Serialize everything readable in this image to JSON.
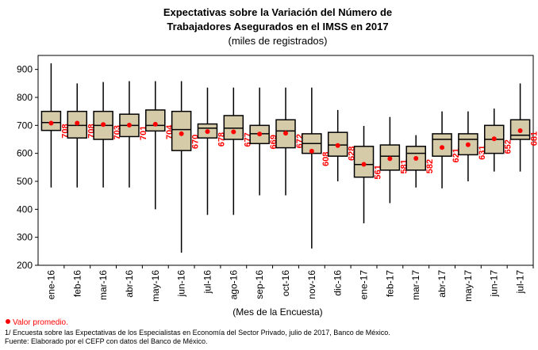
{
  "chart_data": {
    "type": "box",
    "title": [
      "Expectativas sobre la Variación del Número de",
      "Trabajadores  Asegurados  en el IMSS  en 2017"
    ],
    "subtitle": "(miles de registrados)",
    "x_label": "(Mes de la Encuesta)",
    "legend": "Valor promedio.",
    "notes": [
      "1/ Encuesta sobre las Expectativas de los Especialistas en Economía del Sector Privado, julio de 2017, Banco de México.",
      "Fuente: Elaborado por el CEFP con datos del Banco de México."
    ],
    "categories": [
      "ene-16",
      "feb-16",
      "mar-16",
      "abr-16",
      "may-16",
      "jun-16",
      "jul-16",
      "ago-16",
      "sep-16",
      "oct-16",
      "nov-16",
      "dic-16",
      "ene-17",
      "feb-17",
      "mar-17",
      "abr-17",
      "may-17",
      "jun-17",
      "jul-17"
    ],
    "low": [
      478,
      478,
      478,
      478,
      400,
      245,
      380,
      380,
      450,
      450,
      260,
      500,
      350,
      422,
      478,
      475,
      500,
      535,
      535
    ],
    "q1": [
      682,
      655,
      650,
      660,
      680,
      610,
      655,
      650,
      635,
      620,
      600,
      590,
      515,
      540,
      540,
      590,
      595,
      600,
      650
    ],
    "median": [
      710,
      700,
      700,
      700,
      700,
      685,
      690,
      690,
      670,
      680,
      635,
      630,
      560,
      590,
      600,
      650,
      650,
      650,
      665
    ],
    "q3": [
      750,
      750,
      750,
      740,
      755,
      750,
      705,
      735,
      700,
      720,
      670,
      675,
      625,
      630,
      625,
      670,
      670,
      700,
      720
    ],
    "high": [
      922,
      850,
      855,
      858,
      858,
      858,
      835,
      835,
      835,
      835,
      835,
      755,
      698,
      730,
      665,
      750,
      750,
      760,
      850
    ],
    "mean": [
      708,
      708,
      703,
      701,
      704,
      670,
      678,
      677,
      669,
      672,
      608,
      628,
      561,
      581,
      582,
      621,
      631,
      652,
      681
    ],
    "box_color": "#d6cba9",
    "mean_color": "#ff0000",
    "ylim": [
      200,
      950
    ],
    "yticks": [
      200,
      300,
      400,
      500,
      600,
      700,
      800,
      900
    ]
  }
}
